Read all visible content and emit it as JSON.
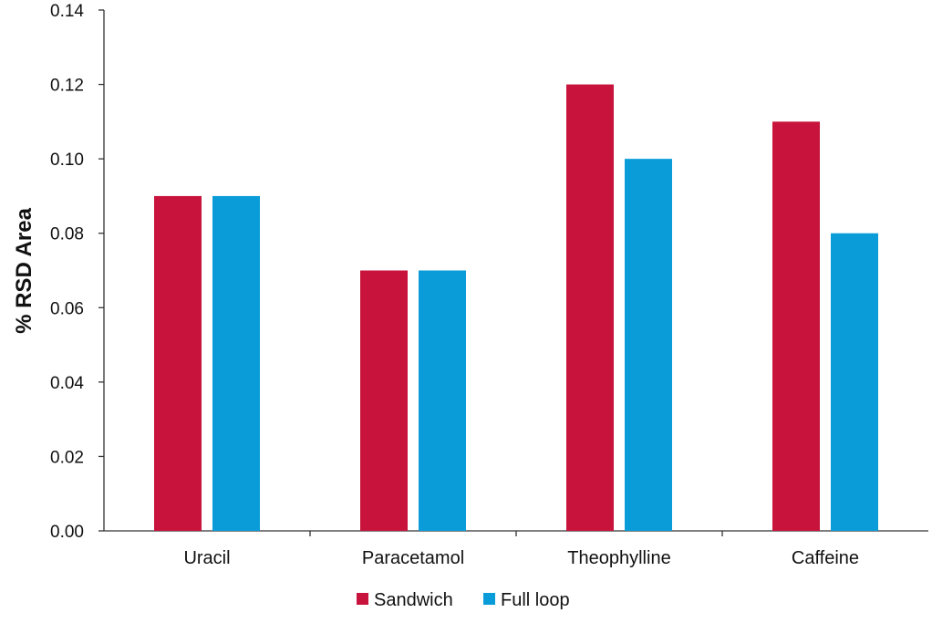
{
  "chart_data": {
    "type": "bar",
    "title": "",
    "xlabel": "",
    "ylabel": "% RSD Area",
    "ylim": [
      0,
      0.14
    ],
    "yticks": [
      "0.00",
      "0.02",
      "0.04",
      "0.06",
      "0.08",
      "0.10",
      "0.12",
      "0.14"
    ],
    "categories": [
      "Uracil",
      "Paracetamol",
      "Theophylline",
      "Caffeine"
    ],
    "series": [
      {
        "name": "Sandwich",
        "color": "#c8143c",
        "values": [
          0.09,
          0.07,
          0.12,
          0.11
        ]
      },
      {
        "name": "Full loop",
        "color": "#0a9cd8",
        "values": [
          0.09,
          0.07,
          0.1,
          0.08
        ]
      }
    ],
    "grid": false,
    "legend_position": "bottom-center"
  }
}
